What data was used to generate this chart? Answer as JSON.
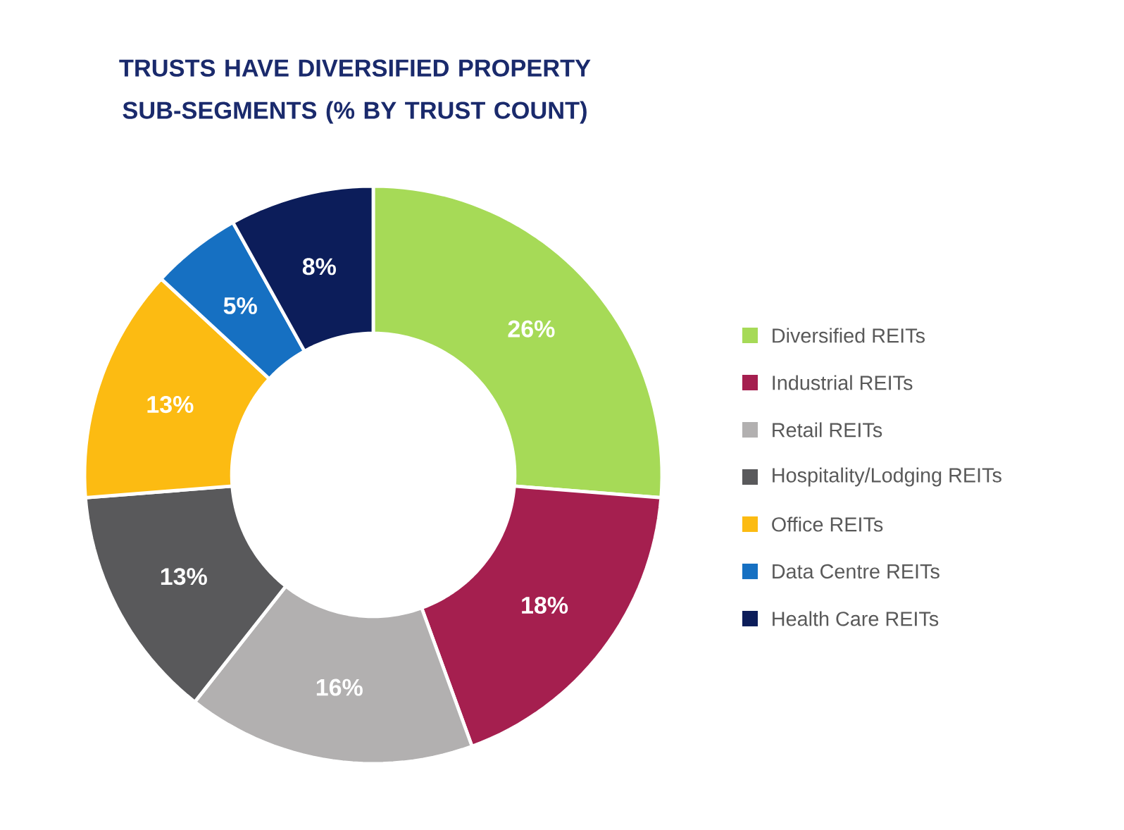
{
  "chart_data": {
    "type": "donut",
    "title": "TRUSTS HAVE DIVERSIFIED PROPERTY SUB-SEGMENTS (% BY TRUST COUNT)",
    "categories": [
      "Diversified REITs",
      "Industrial REITs",
      "Retail REITs",
      "Hospitality/Lodging REITs",
      "Office REITs",
      "Data Centre REITs",
      "Health Care REITs"
    ],
    "values": [
      26,
      18,
      16,
      13,
      13,
      5,
      8
    ],
    "value_labels": [
      "26%",
      "18%",
      "16%",
      "13%",
      "13%",
      "5%",
      "8%"
    ],
    "colors": [
      "#a6da57",
      "#a51f4f",
      "#b2b0b0",
      "#59595b",
      "#fcbb12",
      "#1670c2",
      "#0c1d5a"
    ],
    "legend": "right"
  }
}
